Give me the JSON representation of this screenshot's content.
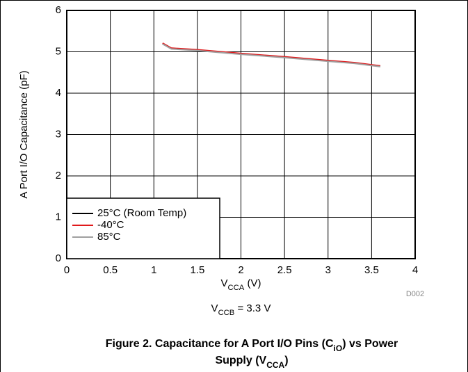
{
  "chart_data": {
    "type": "line",
    "xlabel": [
      "V",
      "CCA",
      " (V)"
    ],
    "ylabel": "A Port I/O Capacitance (pF)",
    "annotation": [
      "V",
      "CCB",
      " = 3.3 V"
    ],
    "code": "D002",
    "caption": [
      [
        "Figure 2. Capacitance for A Port I/O Pins (C",
        "iO",
        ") vs Power"
      ],
      [
        "Supply (V",
        "CCA",
        ")"
      ]
    ],
    "x": [
      1.1,
      1.2,
      1.5,
      2,
      2.5,
      3,
      3.3,
      3.6
    ],
    "series": [
      {
        "name": "25°C (Room Temp)",
        "color": "#000000",
        "values": [
          5.2,
          5.08,
          5.04,
          4.95,
          4.87,
          4.78,
          4.73,
          4.65
        ]
      },
      {
        "name": "-40°C",
        "color": "#e0191b",
        "values": [
          5.21,
          5.09,
          5.05,
          4.96,
          4.88,
          4.79,
          4.74,
          4.66
        ]
      },
      {
        "name": "85°C",
        "color": "#a0a0a0",
        "values": [
          5.19,
          5.07,
          5.03,
          4.94,
          4.86,
          4.77,
          4.72,
          4.64
        ]
      }
    ],
    "xlim": [
      0,
      4
    ],
    "xticks": [
      0,
      0.5,
      1,
      1.5,
      2,
      2.5,
      3,
      3.5,
      4
    ],
    "ylim": [
      0,
      6
    ],
    "yticks": [
      0,
      1,
      2,
      3,
      4,
      5,
      6
    ],
    "grid": true,
    "legend": "lower left"
  }
}
